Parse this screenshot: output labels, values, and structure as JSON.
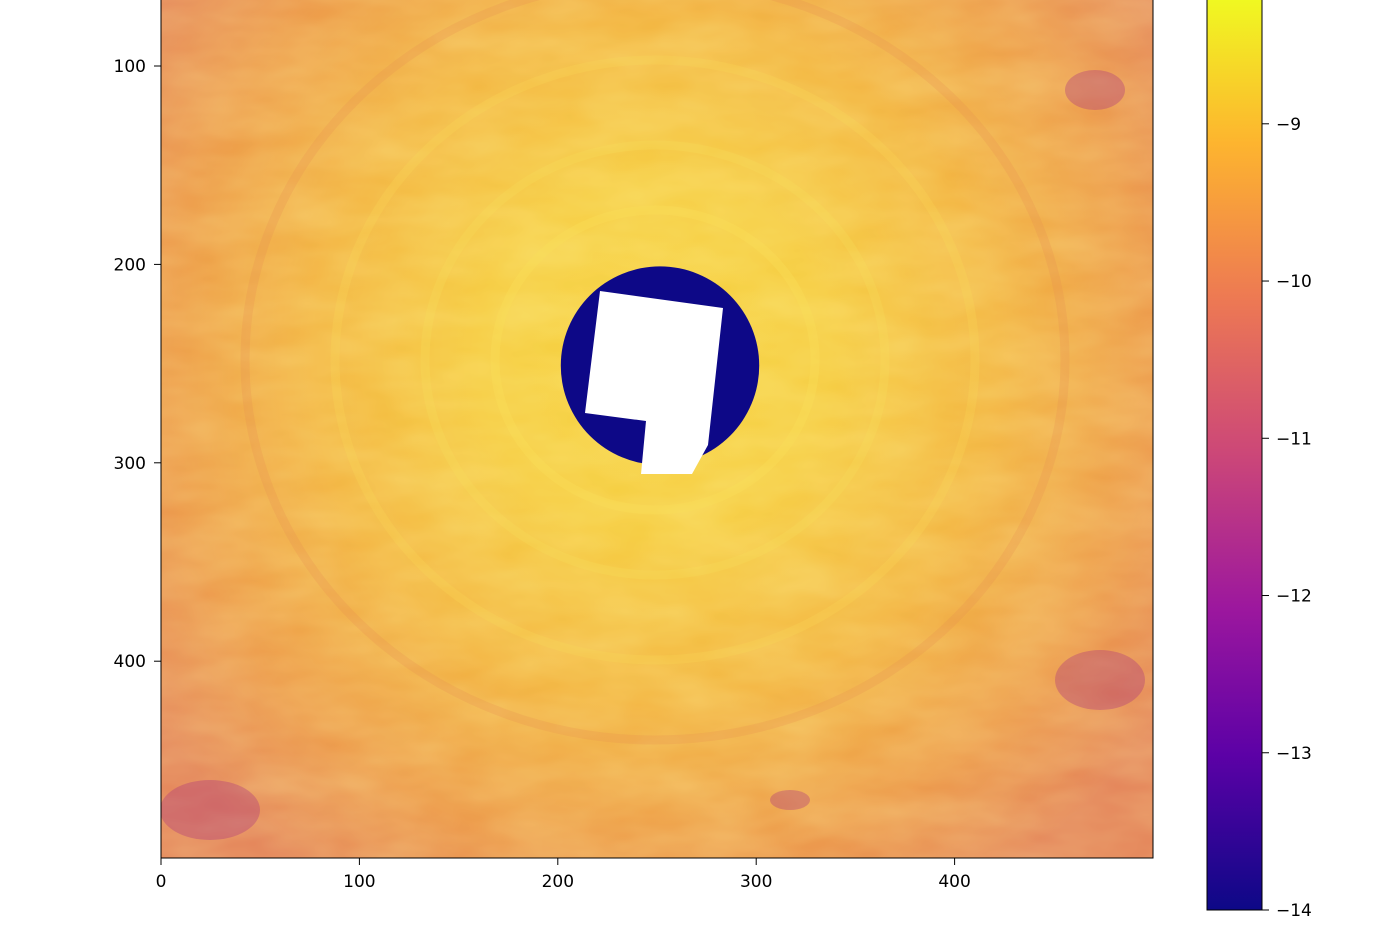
{
  "chart_data": {
    "type": "heatmap",
    "title": "",
    "xlabel": "",
    "ylabel": "",
    "xlim": [
      0,
      500
    ],
    "ylim": [
      500,
      0
    ],
    "x_ticks": [
      0,
      100,
      200,
      300,
      400
    ],
    "y_ticks": [
      100,
      200,
      300,
      400
    ],
    "x_tick_labels": [
      "0",
      "100",
      "200",
      "300",
      "400"
    ],
    "y_tick_labels": [
      "100",
      "200",
      "300",
      "400"
    ],
    "colormap": "plasma",
    "colorbar": {
      "range": [
        -14,
        -8.2
      ],
      "ticks": [
        -9,
        -10,
        -11,
        -12,
        -13,
        -14
      ],
      "tick_labels": [
        "−9",
        "−10",
        "−11",
        "−12",
        "−13",
        "−14"
      ],
      "placement": "right"
    },
    "features": {
      "background_value": -8.7,
      "outer_edge_value": -9.2,
      "hole_center": [
        250,
        250
      ],
      "hole_radius": 50,
      "hole_value": -14,
      "masked_color": "#ffffff"
    },
    "colors": {
      "cmap_stops": [
        "#0d0887",
        "#5c01a6",
        "#9c179e",
        "#cc4778",
        "#ed7953",
        "#fdb42f",
        "#f0f921"
      ],
      "axis": "#000000"
    }
  }
}
